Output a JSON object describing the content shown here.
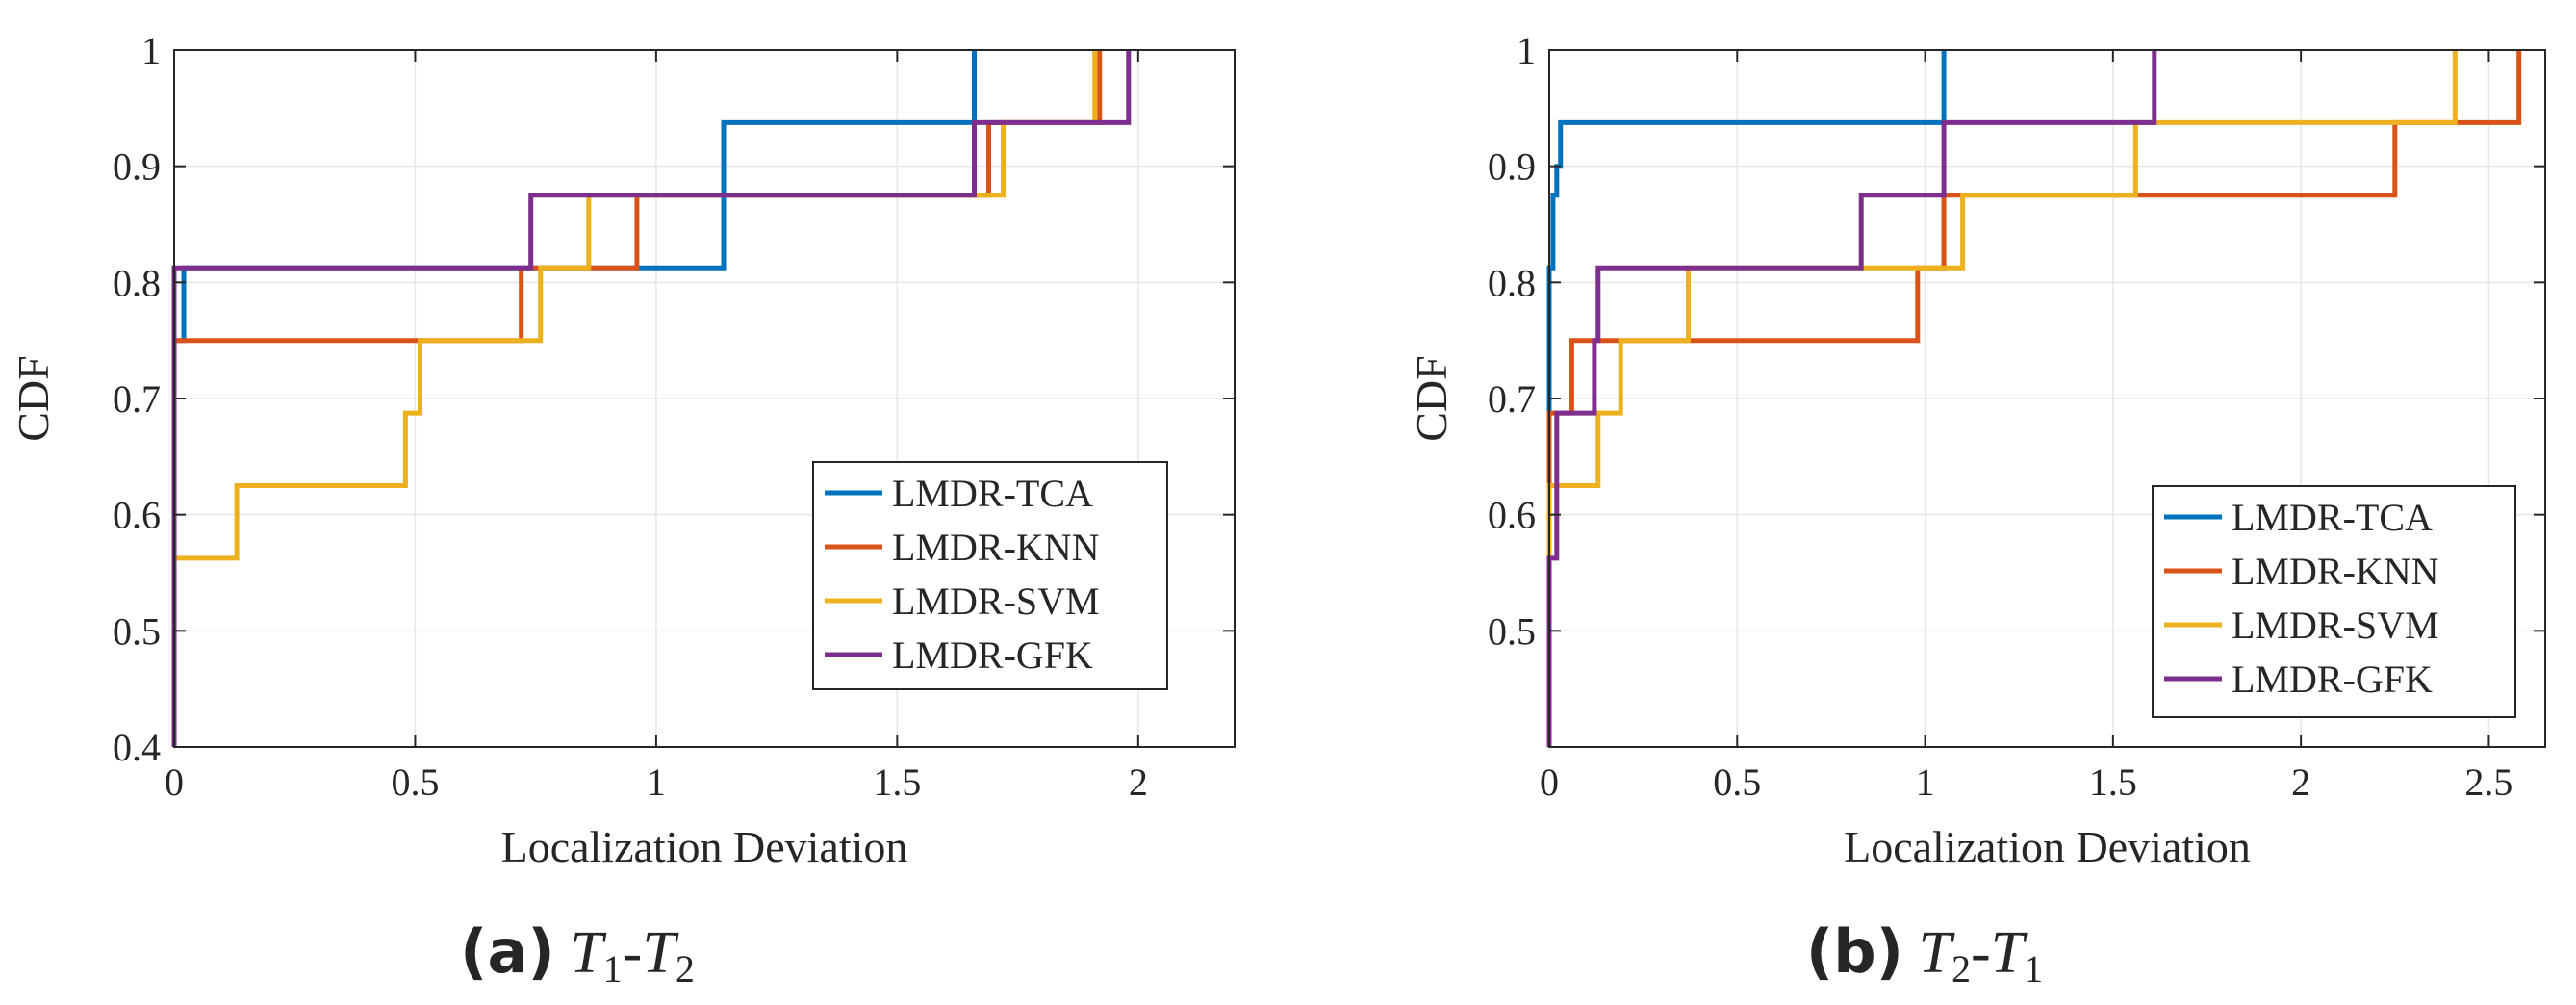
{
  "colors": {
    "LMDR-TCA": "#0072BD",
    "LMDR-KNN": "#D95319",
    "LMDR-SVM": "#EDB120",
    "LMDR-GFK": "#7E2F8E"
  },
  "chart_data": [
    {
      "type": "line",
      "step": true,
      "xlabel": "Localization Deviation",
      "ylabel": "CDF",
      "xlim": [
        0,
        2.2
      ],
      "ylim": [
        0.4,
        1
      ],
      "xticks": [
        "0",
        "0.5",
        "1",
        "1.5",
        "2"
      ],
      "xtick_values": [
        0,
        0.5,
        1,
        1.5,
        2
      ],
      "yticks": [
        "0.4",
        "0.5",
        "0.6",
        "0.7",
        "0.8",
        "0.9",
        "1"
      ],
      "ytick_values": [
        0.4,
        0.5,
        0.6,
        0.7,
        0.8,
        0.9,
        1
      ],
      "grid": true,
      "legend_position": "lower-right",
      "caption": {
        "letter": "(a)",
        "text1": "T",
        "sub1": "1",
        "dash": "-",
        "text2": "T",
        "sub2": "2"
      },
      "series": [
        {
          "name": "LMDR-TCA",
          "x": [
            0,
            0.02,
            0.02,
            1.14,
            1.14,
            1.66,
            1.66
          ],
          "y": [
            0.75,
            0.75,
            0.8125,
            0.8125,
            0.9375,
            0.9375,
            1
          ]
        },
        {
          "name": "LMDR-KNN",
          "x": [
            0,
            0.72,
            0.72,
            0.96,
            0.96,
            1.69,
            1.69,
            1.92,
            1.92
          ],
          "y": [
            0.75,
            0.75,
            0.8125,
            0.8125,
            0.875,
            0.875,
            0.9375,
            0.9375,
            1
          ]
        },
        {
          "name": "LMDR-SVM",
          "x": [
            0,
            0.13,
            0.13,
            0.48,
            0.48,
            0.51,
            0.51,
            0.76,
            0.76,
            0.86,
            0.86,
            1.72,
            1.72,
            1.91,
            1.91
          ],
          "y": [
            0.5625,
            0.5625,
            0.625,
            0.625,
            0.6875,
            0.6875,
            0.75,
            0.75,
            0.8125,
            0.8125,
            0.875,
            0.875,
            0.9375,
            0.9375,
            1
          ]
        },
        {
          "name": "LMDR-GFK",
          "x": [
            0,
            0,
            0.74,
            0.74,
            1.66,
            1.66,
            1.98,
            1.98
          ],
          "y": [
            0.4,
            0.8125,
            0.8125,
            0.875,
            0.875,
            0.9375,
            0.9375,
            1
          ]
        }
      ]
    },
    {
      "type": "line",
      "step": true,
      "xlabel": "Localization Deviation",
      "ylabel": "CDF",
      "xlim": [
        0,
        2.65
      ],
      "ylim": [
        0.4,
        1
      ],
      "xticks": [
        "0",
        "0.5",
        "1",
        "1.5",
        "2",
        "2.5"
      ],
      "xtick_values": [
        0,
        0.5,
        1,
        1.5,
        2,
        2.5
      ],
      "yticks": [
        "0.5",
        "0.6",
        "0.7",
        "0.8",
        "0.9",
        "1"
      ],
      "ytick_values": [
        0.5,
        0.6,
        0.7,
        0.8,
        0.9,
        1
      ],
      "grid": true,
      "legend_position": "lower-right",
      "caption": {
        "letter": "(b)",
        "text1": "T",
        "sub1": "2",
        "dash": "-",
        "text2": "T",
        "sub2": "1"
      },
      "series": [
        {
          "name": "LMDR-TCA",
          "x": [
            0,
            0,
            0.01,
            0.01,
            0.02,
            0.02,
            0.03,
            0.03,
            1.05,
            1.05
          ],
          "y": [
            0.6875,
            0.8125,
            0.8125,
            0.875,
            0.875,
            0.9,
            0.9,
            0.9375,
            0.9375,
            1
          ]
        },
        {
          "name": "LMDR-KNN",
          "x": [
            0,
            0,
            0.06,
            0.06,
            0.98,
            0.98,
            1.05,
            1.05,
            2.25,
            2.25,
            2.58,
            2.58
          ],
          "y": [
            0.625,
            0.6875,
            0.6875,
            0.75,
            0.75,
            0.8125,
            0.8125,
            0.875,
            0.875,
            0.9375,
            0.9375,
            1
          ]
        },
        {
          "name": "LMDR-SVM",
          "x": [
            0,
            0,
            0.13,
            0.13,
            0.19,
            0.19,
            0.37,
            0.37,
            1.1,
            1.1,
            1.56,
            1.56,
            2.41,
            2.41
          ],
          "y": [
            0.5625,
            0.625,
            0.625,
            0.6875,
            0.6875,
            0.75,
            0.75,
            0.8125,
            0.8125,
            0.875,
            0.875,
            0.9375,
            0.9375,
            1
          ]
        },
        {
          "name": "LMDR-GFK",
          "x": [
            0,
            0,
            0.02,
            0.02,
            0.12,
            0.12,
            0.13,
            0.13,
            0.83,
            0.83,
            1.05,
            1.05,
            1.61,
            1.61
          ],
          "y": [
            0.4,
            0.5625,
            0.5625,
            0.6875,
            0.6875,
            0.75,
            0.75,
            0.8125,
            0.8125,
            0.875,
            0.875,
            0.9375,
            0.9375,
            1
          ]
        }
      ]
    }
  ]
}
